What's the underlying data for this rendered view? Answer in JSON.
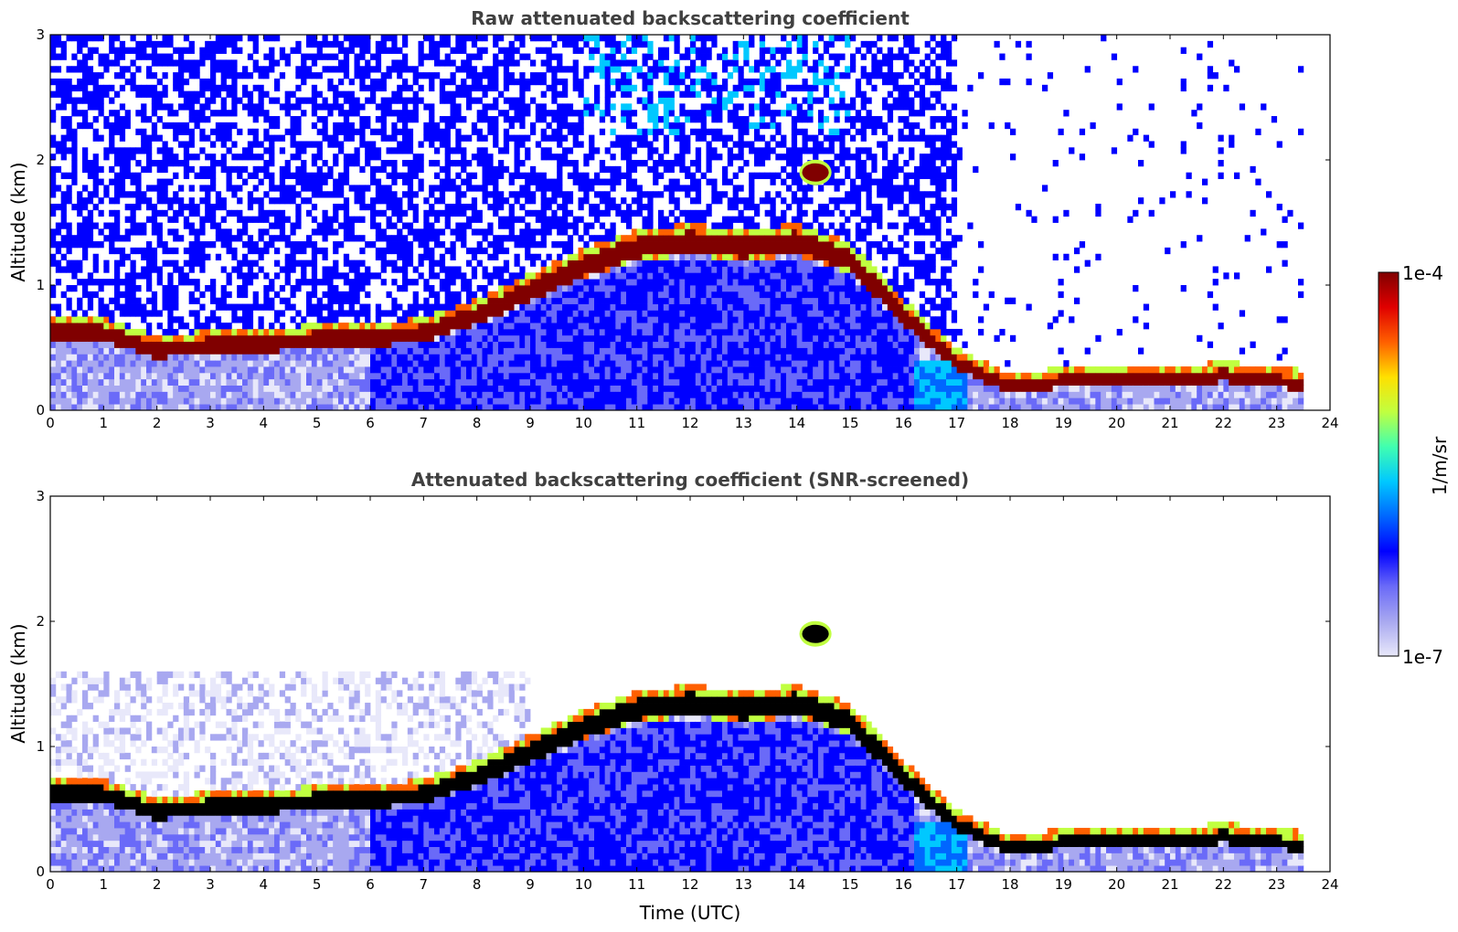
{
  "chart_data": [
    {
      "type": "heatmap",
      "title": "Raw attenuated backscattering coefficient",
      "xlabel": "",
      "ylabel": "Altitude (km)",
      "xlim": [
        0,
        24
      ],
      "ylim": [
        0,
        3
      ],
      "x_ticks": [
        0,
        1,
        2,
        3,
        4,
        5,
        6,
        7,
        8,
        9,
        10,
        11,
        12,
        13,
        14,
        15,
        16,
        17,
        18,
        19,
        20,
        21,
        22,
        23,
        24
      ],
      "y_ticks": [
        0,
        1,
        2,
        3
      ],
      "layer_top_km": [
        [
          0,
          0.6
        ],
        [
          1,
          0.6
        ],
        [
          2,
          0.45
        ],
        [
          3,
          0.5
        ],
        [
          4,
          0.5
        ],
        [
          5,
          0.55
        ],
        [
          6,
          0.55
        ],
        [
          7,
          0.6
        ],
        [
          8,
          0.75
        ],
        [
          9,
          0.95
        ],
        [
          10,
          1.15
        ],
        [
          11,
          1.3
        ],
        [
          12,
          1.35
        ],
        [
          13,
          1.3
        ],
        [
          14,
          1.35
        ],
        [
          15,
          1.2
        ],
        [
          16,
          0.75
        ],
        [
          17,
          0.35
        ],
        [
          18,
          0.15
        ],
        [
          19,
          0.2
        ],
        [
          20,
          0.2
        ],
        [
          21,
          0.2
        ],
        [
          22,
          0.25
        ],
        [
          23,
          0.2
        ],
        [
          23.5,
          0.18
        ]
      ],
      "elevated_cloud": {
        "x_start": 14.1,
        "x_end": 14.6,
        "altitude_km": 1.9
      }
    },
    {
      "type": "heatmap",
      "title": "Attenuated backscattering coefficient (SNR-screened)",
      "xlabel": "Time (UTC)",
      "ylabel": "Altitude (km)",
      "xlim": [
        0,
        24
      ],
      "ylim": [
        0,
        3
      ],
      "x_ticks": [
        0,
        1,
        2,
        3,
        4,
        5,
        6,
        7,
        8,
        9,
        10,
        11,
        12,
        13,
        14,
        15,
        16,
        17,
        18,
        19,
        20,
        21,
        22,
        23,
        24
      ],
      "y_ticks": [
        0,
        1,
        2,
        3
      ],
      "layer_top_km": [
        [
          0,
          0.6
        ],
        [
          1,
          0.6
        ],
        [
          2,
          0.45
        ],
        [
          3,
          0.5
        ],
        [
          4,
          0.5
        ],
        [
          5,
          0.55
        ],
        [
          6,
          0.55
        ],
        [
          7,
          0.6
        ],
        [
          8,
          0.75
        ],
        [
          9,
          0.95
        ],
        [
          10,
          1.15
        ],
        [
          11,
          1.3
        ],
        [
          12,
          1.35
        ],
        [
          13,
          1.3
        ],
        [
          14,
          1.35
        ],
        [
          15,
          1.2
        ],
        [
          16,
          0.75
        ],
        [
          17,
          0.35
        ],
        [
          18,
          0.15
        ],
        [
          19,
          0.2
        ],
        [
          20,
          0.2
        ],
        [
          21,
          0.2
        ],
        [
          22,
          0.25
        ],
        [
          23,
          0.2
        ],
        [
          23.5,
          0.18
        ]
      ],
      "elevated_cloud": {
        "x_start": 14.1,
        "x_end": 14.6,
        "altitude_km": 1.9
      }
    }
  ],
  "colorbar": {
    "label": "1/m/sr",
    "max_label": "1e-4",
    "min_label": "1e-7",
    "colors": [
      "#e8e8fa",
      "#a8a8f0",
      "#6a6af8",
      "#0000ff",
      "#0066ff",
      "#00c8ff",
      "#40ffb0",
      "#c0ff40",
      "#ffe000",
      "#ff6000",
      "#e00000",
      "#800000"
    ]
  }
}
